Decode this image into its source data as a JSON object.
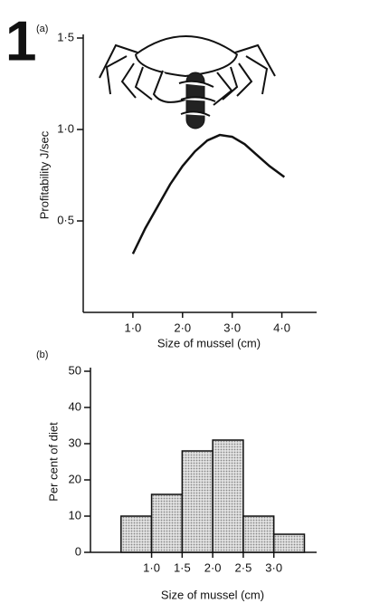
{
  "figure_label": "1",
  "chart_data": [
    {
      "type": "line",
      "panel_label": "(a)",
      "x_label": "Size of mussel (cm)",
      "y_label": "Profitability J/sec",
      "x": [
        1.0,
        1.25,
        1.5,
        1.75,
        2.0,
        2.25,
        2.5,
        2.75,
        3.0,
        3.25,
        3.5,
        3.75,
        4.05
      ],
      "values": [
        0.32,
        0.46,
        0.58,
        0.7,
        0.8,
        0.88,
        0.94,
        0.97,
        0.96,
        0.92,
        0.86,
        0.8,
        0.74
      ],
      "color": "#111111",
      "xlim": [
        0,
        4.7
      ],
      "ylim": [
        0,
        1.5
      ],
      "xticks": [
        {
          "value": 1,
          "label": "1·0"
        },
        {
          "value": 2,
          "label": "2·0"
        },
        {
          "value": 3,
          "label": "3·0"
        },
        {
          "value": 4,
          "label": "4·0"
        }
      ],
      "yticks": [
        {
          "value": 0.5,
          "label": "0·5"
        },
        {
          "value": 1,
          "label": "1·0"
        },
        {
          "value": 1.5,
          "label": "1·5"
        }
      ]
    },
    {
      "type": "histogram",
      "panel_label": "(b)",
      "x_label": "Size of mussel (cm)",
      "y_label": "Per cent of diet",
      "bins": [
        0.5,
        1.0,
        1.5,
        2.0,
        2.5,
        3.0,
        3.5
      ],
      "values": [
        10,
        16,
        28,
        31,
        10,
        5
      ],
      "color": "#c4c4c4",
      "xlim": [
        0,
        3.7
      ],
      "ylim": [
        0,
        50
      ],
      "xticks": [
        {
          "value": 1,
          "label": "1·0"
        },
        {
          "value": 1.5,
          "label": "1·5"
        },
        {
          "value": 2,
          "label": "2·0"
        },
        {
          "value": 2.5,
          "label": "2·5"
        },
        {
          "value": 3,
          "label": "3·0"
        }
      ],
      "yticks": [
        0,
        10,
        20,
        30,
        40,
        50
      ]
    }
  ]
}
